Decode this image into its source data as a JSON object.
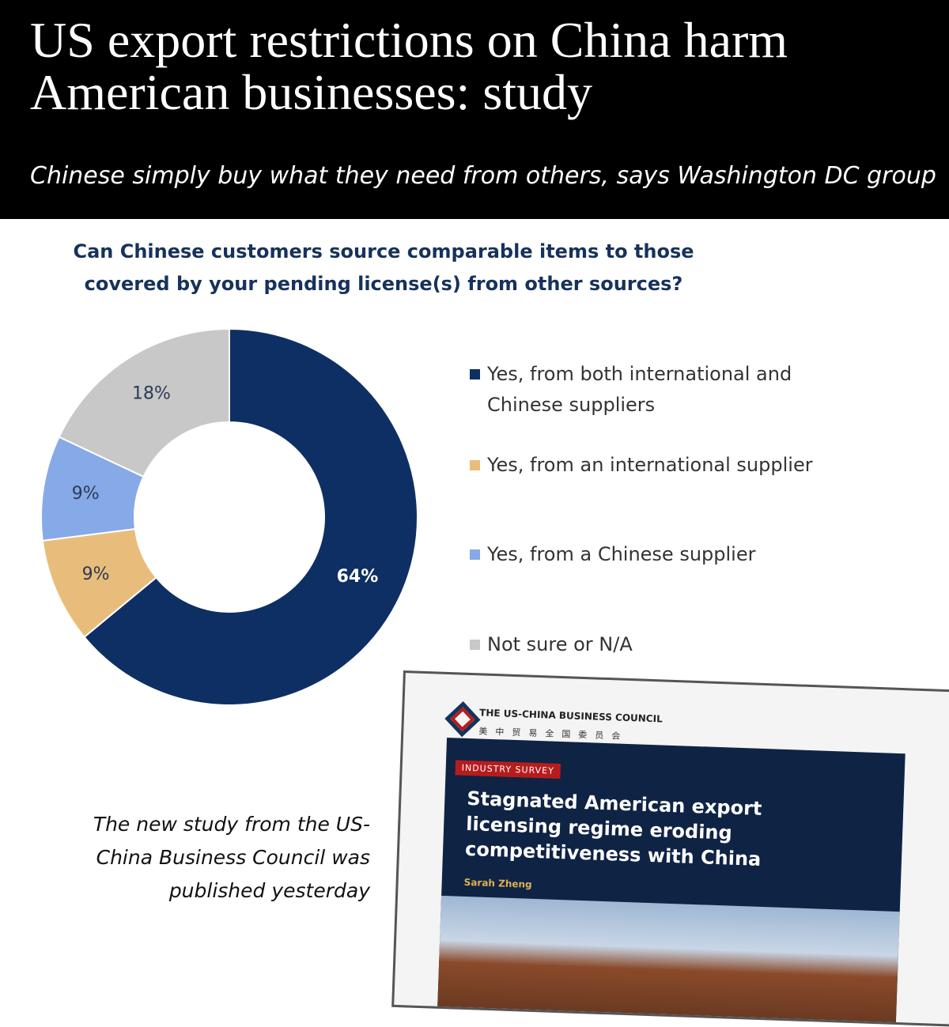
{
  "header": {
    "title": "US export restrictions on China harm American businesses: study",
    "subtitle": "Chinese simply buy what they need from others, says Washington DC group"
  },
  "chart_data": {
    "type": "pie",
    "title": "Can Chinese customers source comparable items to those covered by your pending license(s) from other sources?",
    "categories": [
      "Yes, from both international and Chinese suppliers",
      "Yes, from an international supplier",
      "Yes, from a Chinese supplier",
      "Not sure or N/A"
    ],
    "values": [
      64,
      9,
      9,
      18
    ],
    "value_labels": [
      "64%",
      "9%",
      "9%",
      "18%"
    ],
    "colors": [
      "#0e2f63",
      "#e8bd7c",
      "#86a9e8",
      "#c8c8c8"
    ]
  },
  "caption": "The new study from the US-China Business Council was published yesterday",
  "inset": {
    "organization": "THE US-CHINA BUSINESS COUNCIL",
    "organization_chinese": "美中贸易全国委员会",
    "tag": "INDUSTRY SURVEY",
    "headline": "Stagnated American export licensing regime eroding competitiveness with China",
    "author": "Sarah Zheng"
  }
}
